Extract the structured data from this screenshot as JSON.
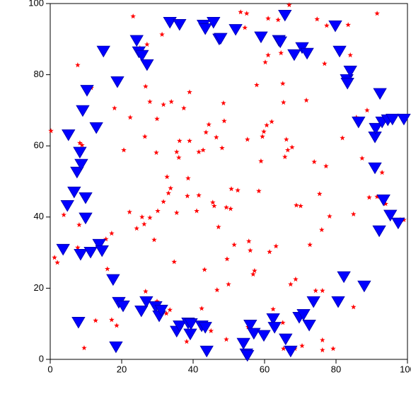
{
  "chart_data": {
    "type": "scatter",
    "xlim": [
      0,
      100
    ],
    "ylim": [
      0,
      100
    ],
    "xticks": [
      0,
      20,
      40,
      60,
      80,
      100
    ],
    "yticks": [
      0,
      20,
      40,
      60,
      80,
      100
    ],
    "series": [
      {
        "color": "#ff0000",
        "marker": "star",
        "x": [
          0.2,
          1.2,
          2,
          3.8,
          7.7,
          8.1,
          8.3,
          8.9,
          9.5,
          7.7,
          11.5,
          12.7,
          15.6,
          16.0,
          17.2,
          17.2,
          18.0,
          18.6,
          20.6,
          22.2,
          22.4,
          23.2,
          24.2,
          25.1,
          25.7,
          26.3,
          26.5,
          26.7,
          26.7,
          27.1,
          27.9,
          27.9,
          29.1,
          29.7,
          29.9,
          30.1,
          29.9,
          31.3,
          31.7,
          31.7,
          32.5,
          32.7,
          33.1,
          33.5,
          33.7,
          33.9,
          33.9,
          34.7,
          35.4,
          35.4,
          36.0,
          36.2,
          36.4,
          37.4,
          38.2,
          38.6,
          38.4,
          39.0,
          39.0,
          41.0,
          41.6,
          41.6,
          42.2,
          42.4,
          42.8,
          43.2,
          43.6,
          44.4,
          45.0,
          45.5,
          45.9,
          46.5,
          46.7,
          47.1,
          48.1,
          48.5,
          48.7,
          49.3,
          49.3,
          49.5,
          49.9,
          50.5,
          50.7,
          51.5,
          52.5,
          53.3,
          54.5,
          55.0,
          55.2,
          55.4,
          55.6,
          56.0,
          56.8,
          57.2,
          57.8,
          58.4,
          59.0,
          59.4,
          59.8,
          60.2,
          60.6,
          61.0,
          61.0,
          61.4,
          62.0,
          62.4,
          63.2,
          63.8,
          64.6,
          65.1,
          65.1,
          65.3,
          65.3,
          65.7,
          66.1,
          66.5,
          66.9,
          67.3,
          67.7,
          68.5,
          68.7,
          68.9,
          70.1,
          70.5,
          71.7,
          72.7,
          73.9,
          74.3,
          74.7,
          75.4,
          76.0,
          76.2,
          76.2,
          76.2,
          76.8,
          77.2,
          77.4,
          78.2,
          79.2,
          81.8,
          83.4,
          84.0,
          84.9,
          84.9,
          85.7,
          87.3,
          88.7,
          89.3,
          91.5,
          91.5,
          92.9,
          93.9,
          98.0,
          99.0
        ],
        "values": [
          64.2,
          28.6,
          27.2,
          40.6,
          82.7,
          37.8,
          60.8,
          60.2,
          3.2,
          31.4,
          76.3,
          10.9,
          33.8,
          25.4,
          35.4,
          11.1,
          70.6,
          9.5,
          58.8,
          41.4,
          68.0,
          96.4,
          36.8,
          87.5,
          40.0,
          38.0,
          62.6,
          76.7,
          19.1,
          88.5,
          72.4,
          39.8,
          33.6,
          58.1,
          16.3,
          41.7,
          67.6,
          91.3,
          71.6,
          44.3,
          12.9,
          51.3,
          46.7,
          13.9,
          48.1,
          95.0,
          72.4,
          27.4,
          41.2,
          58.3,
          56.7,
          61.4,
          9.7,
          70.6,
          5.0,
          50.9,
          45.9,
          75.1,
          61.4,
          41.7,
          58.3,
          46.1,
          8.9,
          14.3,
          58.8,
          25.2,
          63.8,
          66.0,
          8.0,
          44.1,
          43.1,
          62.4,
          19.5,
          37.2,
          59.4,
          72.0,
          67.0,
          5.6,
          42.7,
          28.2,
          21.1,
          42.3,
          47.9,
          32.2,
          47.5,
          97.6,
          93.2,
          97.2,
          61.8,
          9.1,
          33.2,
          30.6,
          23.9,
          24.9,
          77.1,
          47.3,
          55.7,
          62.6,
          64.0,
          83.5,
          65.8,
          95.8,
          85.5,
          30.2,
          66.8,
          14.1,
          31.8,
          95.4,
          86.1,
          77.5,
          10.3,
          72.2,
          3.0,
          56.9,
          61.8,
          58.8,
          99.6,
          21.1,
          59.6,
          3.0,
          22.5,
          43.3,
          43.1,
          3.8,
          72.8,
          32.2,
          55.5,
          19.3,
          95.6,
          46.5,
          36.4,
          5.4,
          2.6,
          19.3,
          83.1,
          54.3,
          93.8,
          40.2,
          3.0,
          62.2,
          94.0,
          85.5,
          40.8,
          14.7,
          68.0,
          56.5,
          70.0,
          45.5,
          97.2,
          45.7,
          52.5,
          43.7,
          39.2,
          39.2
        ]
      },
      {
        "color": "#0000ff",
        "marker": "triangle-down",
        "x": [
          3.6,
          4.8,
          5.1,
          6.7,
          7.5,
          8.3,
          8.7,
          7.9,
          8.5,
          9.1,
          9.9,
          9.9,
          10.3,
          11.3,
          12.9,
          13.7,
          14.5,
          14.9,
          17.6,
          18.4,
          18.8,
          19.2,
          20.4,
          24.2,
          24.8,
          25.5,
          25.7,
          26.9,
          27.1,
          29.5,
          30.5,
          31.1,
          33.5,
          35.4,
          36.2,
          36.2,
          38.6,
          39.2,
          39.4,
          42.4,
          42.9,
          43.4,
          43.4,
          43.8,
          45.7,
          47.3,
          47.7,
          51.9,
          54.1,
          54.9,
          55.2,
          56.0,
          57.0,
          59.0,
          59.8,
          62.4,
          62.8,
          64.0,
          64.4,
          65.7,
          65.9,
          67.3,
          68.3,
          69.7,
          70.5,
          70.9,
          71.9,
          72.5,
          73.7,
          79.8,
          80.6,
          81.0,
          82.2,
          83.0,
          83.2,
          84.0,
          86.3,
          87.9,
          90.9,
          90.9,
          91.1,
          92.1,
          92.3,
          92.9,
          93.3,
          94.5,
          95.2,
          95.8,
          97.4,
          99.0
        ],
        "values": [
          31.0,
          43.3,
          63.2,
          47.1,
          52.7,
          58.3,
          54.9,
          10.5,
          29.6,
          70.0,
          45.5,
          39.8,
          75.7,
          30.2,
          65.2,
          32.4,
          30.6,
          86.7,
          22.5,
          3.6,
          78.1,
          16.1,
          15.1,
          89.7,
          86.5,
          13.7,
          85.5,
          16.3,
          82.9,
          14.9,
          12.3,
          13.9,
          94.8,
          8.0,
          94.2,
          9.5,
          10.3,
          7.2,
          10.1,
          9.5,
          94.0,
          93.0,
          9.1,
          2.4,
          94.8,
          90.1,
          90.3,
          92.8,
          4.6,
          1.6,
          1.2,
          9.7,
          7.4,
          90.7,
          6.8,
          11.5,
          9.1,
          89.7,
          89.3,
          96.8,
          5.8,
          2.4,
          85.7,
          11.9,
          87.7,
          12.7,
          86.1,
          9.7,
          16.3,
          93.8,
          16.3,
          86.7,
          23.3,
          78.7,
          77.7,
          81.1,
          66.8,
          20.7,
          62.6,
          53.9,
          65.0,
          36.2,
          74.8,
          66.8,
          44.9,
          67.4,
          40.6,
          67.6,
          38.4,
          67.6
        ]
      }
    ]
  }
}
